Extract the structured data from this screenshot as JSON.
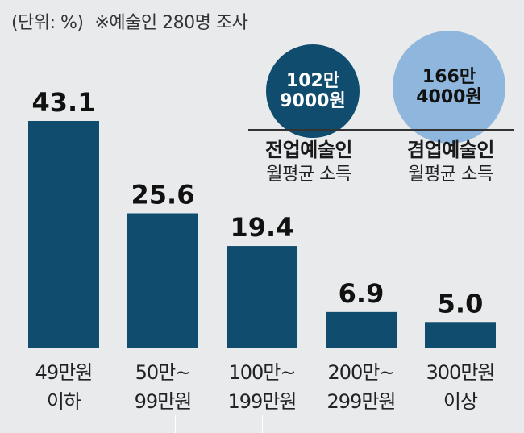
{
  "header": {
    "unit_label": "(단위: %)",
    "note": "※예술인 280명 조사"
  },
  "income": {
    "fulltime": {
      "amount_line1": "102만",
      "amount_line2": "9000원",
      "name": "전업예술인",
      "sub": "월평균 소득",
      "color": "#0f4c6e"
    },
    "parttime": {
      "amount_line1": "166만",
      "amount_line2": "4000원",
      "name": "겸업예술인",
      "sub": "월평균 소득",
      "color": "#8fb6dc"
    }
  },
  "chart_data": {
    "type": "bar",
    "title": "",
    "unit": "%",
    "categories": [
      [
        "49만원",
        "이하"
      ],
      [
        "50만~",
        "99만원"
      ],
      [
        "100만~",
        "199만원"
      ],
      [
        "200만~",
        "299만원"
      ],
      [
        "300만원",
        "이상"
      ]
    ],
    "values": [
      43.1,
      25.6,
      19.4,
      6.9,
      5.0
    ],
    "value_labels": [
      "43.1",
      "25.6",
      "19.4",
      "6.9",
      "5.0"
    ],
    "ylim": [
      0,
      43.1
    ],
    "bar_color": "#0f4c6e",
    "grid": false
  }
}
